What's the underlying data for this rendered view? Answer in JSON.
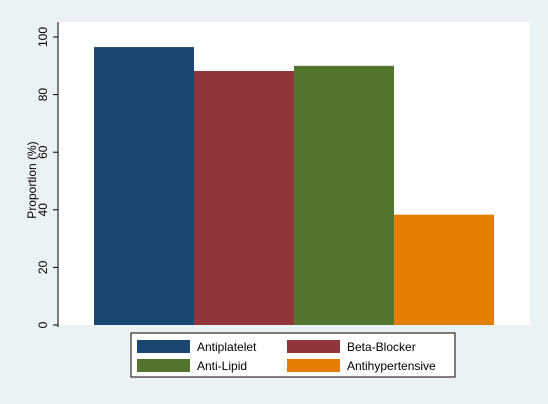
{
  "chart_data": {
    "type": "bar",
    "title": "",
    "xlabel": "",
    "ylabel": "Proportion (%)",
    "ylim": [
      0,
      100
    ],
    "yticks": [
      0,
      20,
      40,
      60,
      80,
      100
    ],
    "grid": false,
    "legend_position": "bottom",
    "series": [
      {
        "name": "Antiplatelet",
        "value": 96.5,
        "color": "#1a476f"
      },
      {
        "name": "Beta-Blocker",
        "value": 88.2,
        "color": "#90353b"
      },
      {
        "name": "Anti-Lipid",
        "value": 90.0,
        "color": "#55752f"
      },
      {
        "name": "Antihypertensive",
        "value": 38.3,
        "color": "#e37e00"
      }
    ]
  },
  "theme": {
    "outer_background": "#eaf2f3",
    "plot_background": "#ffffff",
    "axis_color": "#000000"
  }
}
